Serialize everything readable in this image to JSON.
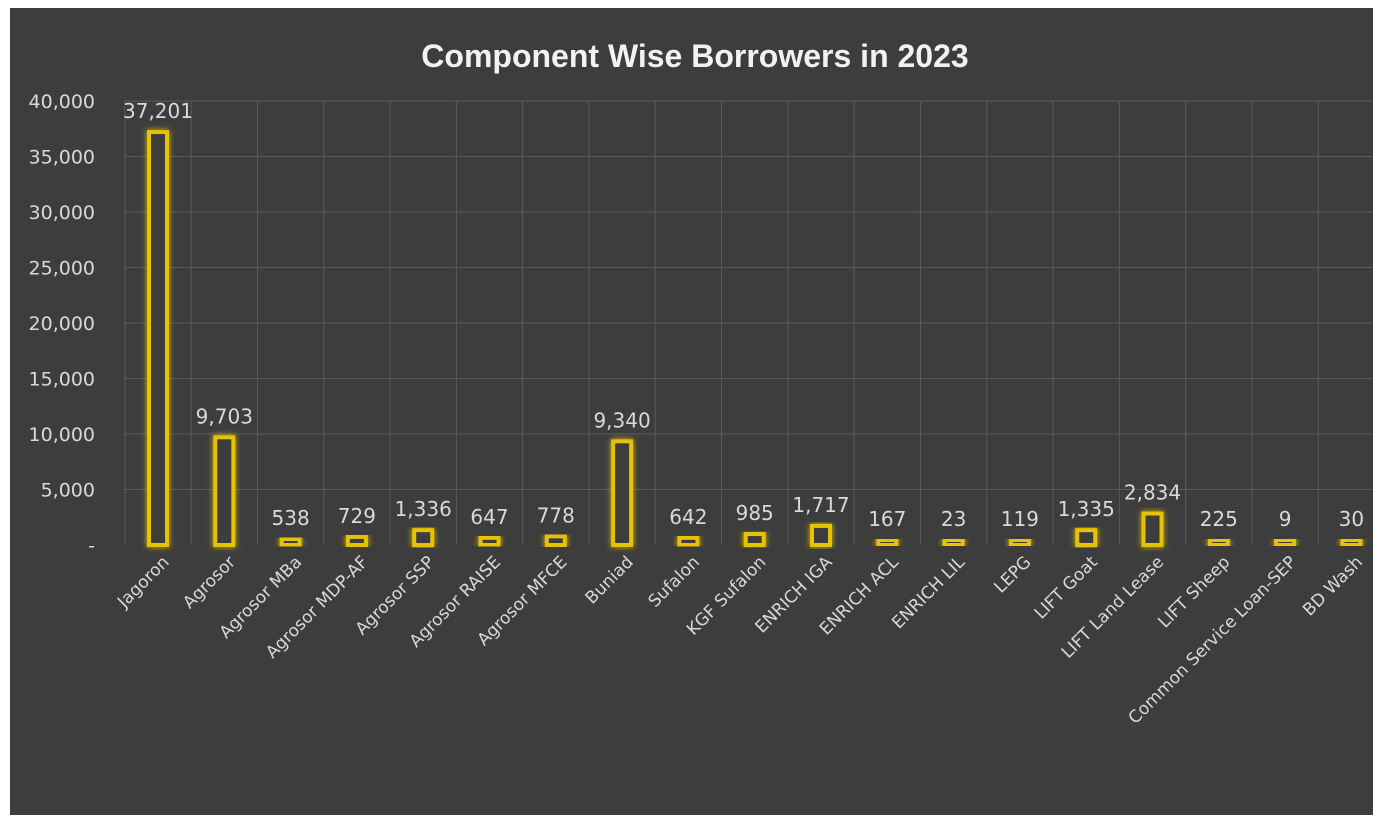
{
  "colors": {
    "page_background": "#ffffff",
    "chart_background": "#3d3d3d",
    "gridline": "#5a5a5a",
    "bar_fill": "#3d3d3d",
    "bar_stroke": "#e6c200",
    "bar_glow": "#b8960a",
    "text": "#d9d9d9",
    "title": "#f2f2f2"
  },
  "chart_data": {
    "type": "bar",
    "title": "Component Wise  Borrowers in 2023",
    "xlabel": "",
    "ylabel": "",
    "ylim": [
      0,
      40000
    ],
    "yticks": [
      0,
      5000,
      10000,
      15000,
      20000,
      25000,
      30000,
      35000,
      40000
    ],
    "ytick_labels": [
      "-",
      "5,000",
      "10,000",
      "15,000",
      "20,000",
      "25,000",
      "30,000",
      "35,000",
      "40,000"
    ],
    "grid": true,
    "legend": "none",
    "categories": [
      "Jagoron",
      "Agrosor",
      "Agrosor MBa",
      "Agrosor MDP-AF",
      "Agrosor SSP",
      "Agrosor RAISE",
      "Agrosor MFCE",
      "Buniad",
      "Sufalon",
      "KGF Sufalon",
      "ENRICH IGA",
      "ENRICH ACL",
      "ENRICH LIL",
      "LEPG",
      "LIFT Goat",
      "LIFT Land Lease",
      "LIFT Sheep",
      "Common Service Loan-SEP",
      "BD Wash"
    ],
    "values": [
      37201,
      9703,
      538,
      729,
      1336,
      647,
      778,
      9340,
      642,
      985,
      1717,
      167,
      23,
      119,
      1335,
      2834,
      225,
      9,
      30
    ],
    "data_labels": [
      "37,201",
      "9,703",
      "538",
      "729",
      "1,336",
      "647",
      "778",
      "9,340",
      "642",
      "985",
      "1,717",
      "167",
      "23",
      "119",
      "1,335",
      "2,834",
      "225",
      "9",
      "30"
    ]
  }
}
